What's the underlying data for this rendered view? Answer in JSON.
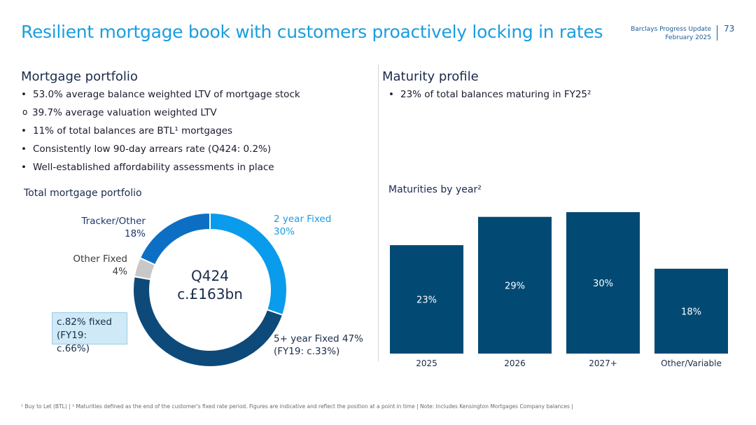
{
  "slide": {
    "title": "Resilient mortgage book with customers proactively locking in rates",
    "header_line1": "Barclays Progress Update",
    "header_line2": "February 2025",
    "page_number": "73"
  },
  "left": {
    "heading": "Mortgage portfolio",
    "bullets": [
      {
        "marker": "•",
        "text": "53.0% average balance weighted LTV of mortgage stock"
      },
      {
        "marker": "o",
        "text": "39.7% average valuation weighted LTV"
      },
      {
        "marker": "•",
        "text": "11% of total balances are BTL¹ mortgages"
      },
      {
        "marker": "•",
        "text": "Consistently low 90-day arrears rate (Q424: 0.2%)"
      },
      {
        "marker": "•",
        "text": "Well-established affordability assessments in place"
      }
    ]
  },
  "right": {
    "heading": "Maturity profile",
    "bullets": [
      {
        "marker": "•",
        "text": "23% of total balances maturing in FY25²"
      }
    ]
  },
  "chart_data": [
    {
      "type": "pie",
      "title": "Total mortgage portfolio",
      "center_line1": "Q424",
      "center_line2": "c.£163bn",
      "slices": [
        {
          "name": "2 year Fixed",
          "label_pct": "30%",
          "value": 30,
          "color": "#0a9cec"
        },
        {
          "name": "5+ year Fixed 47%",
          "label_pct": "(FY19: c.33%)",
          "value": 47,
          "color": "#0d4a7a"
        },
        {
          "name": "Other Fixed",
          "label_pct": "4%",
          "value": 4,
          "color": "#c8c8c8"
        },
        {
          "name": "Tracker/Other",
          "label_pct": "18%",
          "value": 18,
          "color": "#0d6fc4"
        }
      ],
      "callout_line1": "c.82% fixed",
      "callout_line2": "(FY19: c.66%)"
    },
    {
      "type": "bar",
      "title": "Maturities by year²",
      "categories": [
        "2025",
        "2026",
        "2027+",
        "Other/Variable"
      ],
      "values": [
        23,
        29,
        30,
        18
      ],
      "labels": [
        "23%",
        "29%",
        "30%",
        "18%"
      ],
      "color": "#024a74",
      "ylim": [
        0,
        30
      ]
    }
  ],
  "footnote": "¹ Buy to Let (BTL) | ² Maturities defined as the end of the customer's fixed rate period. Figures are indicative and reflect the position at a point in time | Note: Includes Kensington Mortgages Company balances |"
}
